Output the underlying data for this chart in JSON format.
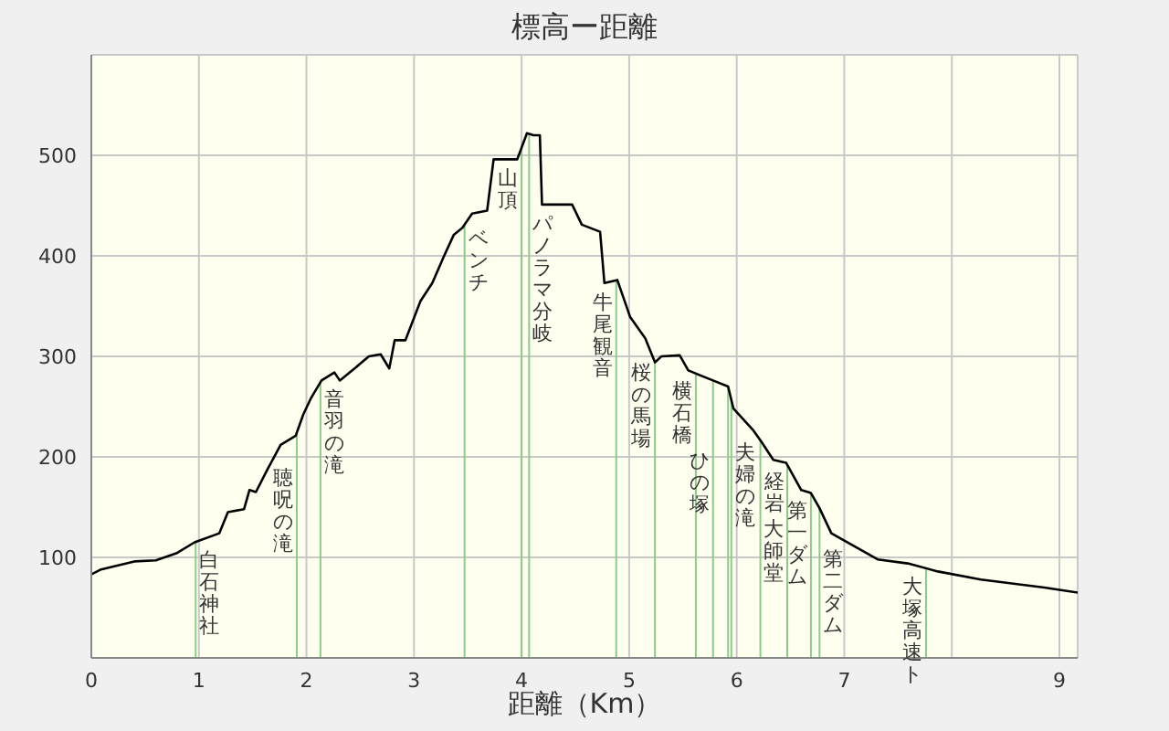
{
  "chart_data": {
    "type": "line",
    "title": "標高ー距離",
    "xlabel": "距離（Km）",
    "x": [
      0,
      0.09,
      0.4,
      0.6,
      0.79,
      0.96,
      1.19,
      1.27,
      1.42,
      1.47,
      1.53,
      1.64,
      1.76,
      1.9,
      1.97,
      2.04,
      2.14,
      2.26,
      2.31,
      2.46,
      2.58,
      2.69,
      2.77,
      2.82,
      2.92,
      3.06,
      3.17,
      3.28,
      3.37,
      3.45,
      3.54,
      3.68,
      3.74,
      3.96,
      4.05,
      4.11,
      4.17,
      4.19,
      4.47,
      4.56,
      4.73,
      4.77,
      4.89,
      5.01,
      5.15,
      5.24,
      5.3,
      5.47,
      5.55,
      5.78,
      5.92,
      5.97,
      6.15,
      6.23,
      6.34,
      6.46,
      6.6,
      6.69,
      6.77,
      6.88,
      7.08,
      7.31,
      7.59,
      7.87,
      8.27,
      8.86,
      9.17
    ],
    "series": [
      {
        "color": "#000000",
        "values": [
          83,
          88,
          96,
          97,
          104,
          115,
          124,
          145,
          148,
          167,
          165,
          188,
          212,
          221,
          242,
          258,
          276,
          284,
          276,
          289,
          300,
          302,
          288,
          316,
          316,
          355,
          373,
          400,
          421,
          428,
          442,
          445,
          496,
          496,
          522,
          520,
          520,
          451,
          451,
          431,
          424,
          373,
          376,
          339,
          318,
          294,
          300,
          301,
          286,
          276,
          270,
          248,
          227,
          215,
          197,
          194,
          167,
          164,
          149,
          124,
          112,
          98,
          94,
          86,
          78,
          70,
          65
        ]
      }
    ],
    "xlim": [
      0,
      9.17
    ],
    "xticks": [
      0,
      1,
      2,
      3,
      4,
      5,
      6,
      7,
      {
        "value": 8,
        "label": null
      },
      9
    ],
    "ylim": [
      0,
      600
    ],
    "yticks": [
      100,
      200,
      300,
      400,
      500
    ],
    "grid": true,
    "marker": "none",
    "line_style": "solid",
    "ref_lines": [
      {
        "axis": "x",
        "value": 0.97,
        "label": "白石神社",
        "color": "#88cc88"
      },
      {
        "axis": "x",
        "value": 1.91,
        "label": "聴呪の滝",
        "color": "#88cc88"
      },
      {
        "axis": "x",
        "value": 2.13,
        "label": "音羽の滝",
        "color": "#88cc88"
      },
      {
        "axis": "x",
        "value": 3.47,
        "label": "ベンチ",
        "color": "#88cc88"
      },
      {
        "axis": "x",
        "value": 4.0,
        "label": "山頂",
        "color": "#88cc88"
      },
      {
        "axis": "x",
        "value": 4.07,
        "label": "パノラマ分岐",
        "color": "#88cc88"
      },
      {
        "axis": "x",
        "value": 4.88,
        "label": "牛尾観音",
        "color": "#88cc88"
      },
      {
        "axis": "x",
        "value": 5.24,
        "label": "桜の馬場",
        "color": "#88cc88"
      },
      {
        "axis": "x",
        "value": 5.62,
        "label": "横石橋",
        "color": "#88cc88"
      },
      {
        "axis": "x",
        "value": 5.78,
        "label": "ひの塚",
        "color": "#88cc88"
      },
      {
        "axis": "x",
        "value": 5.92,
        "color": "#88cc88"
      },
      {
        "axis": "x",
        "value": 5.95,
        "label": "夫婦の滝",
        "color": "#88cc88"
      },
      {
        "axis": "x",
        "value": 6.22,
        "label": "経岩",
        "color": "#88cc88"
      },
      {
        "axis": "x",
        "value": 6.47,
        "label": "大師堂",
        "color": "#88cc88"
      },
      {
        "axis": "x",
        "value": 6.69,
        "label": "第一ダム",
        "color": "#88cc88"
      },
      {
        "axis": "x",
        "value": 6.77,
        "label": "第二ダム",
        "color": "#88cc88"
      },
      {
        "axis": "x",
        "value": 7.76,
        "label": "大塚高速ト",
        "color": "#88cc88"
      }
    ]
  }
}
